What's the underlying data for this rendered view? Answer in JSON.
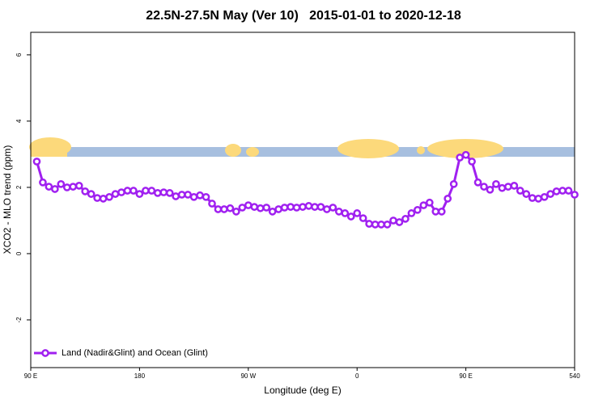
{
  "chart_data": {
    "type": "line",
    "title": "22.5N-27.5N May (Ver 10)   2015-01-01 to 2020-12-18",
    "x_label": "Longitude (deg E)",
    "y_label": "XCO2 - MLO trend (ppm)",
    "x": [
      95,
      100,
      105,
      110,
      115,
      120,
      125,
      130,
      135,
      140,
      145,
      150,
      155,
      160,
      165,
      170,
      175,
      180,
      185,
      190,
      195,
      200,
      205,
      210,
      215,
      220,
      225,
      230,
      235,
      240,
      245,
      250,
      255,
      260,
      265,
      270,
      275,
      280,
      285,
      290,
      295,
      300,
      305,
      310,
      315,
      320,
      325,
      330,
      335,
      340,
      345,
      350,
      355,
      360,
      365,
      370,
      375,
      380,
      385,
      390,
      395,
      400,
      405,
      410,
      415,
      420,
      425,
      430,
      435,
      440,
      445,
      450,
      455,
      460,
      465,
      470,
      475,
      480,
      485,
      490,
      495,
      500,
      505,
      510,
      515,
      520,
      525,
      530,
      535,
      540
    ],
    "series": [
      {
        "name": "Land (Nadir&Glint) and Ocean (Glint)",
        "color": "#a020f0",
        "values": [
          2.78,
          2.15,
          2.02,
          1.95,
          2.1,
          2.0,
          2.02,
          2.05,
          1.88,
          1.8,
          1.68,
          1.66,
          1.71,
          1.8,
          1.85,
          1.9,
          1.9,
          1.8,
          1.9,
          1.9,
          1.83,
          1.85,
          1.83,
          1.73,
          1.78,
          1.78,
          1.71,
          1.76,
          1.71,
          1.51,
          1.34,
          1.34,
          1.37,
          1.27,
          1.39,
          1.46,
          1.41,
          1.37,
          1.39,
          1.27,
          1.34,
          1.39,
          1.41,
          1.39,
          1.41,
          1.44,
          1.41,
          1.41,
          1.34,
          1.39,
          1.27,
          1.22,
          1.12,
          1.22,
          1.07,
          0.9,
          0.88,
          0.88,
          0.88,
          1.0,
          0.95,
          1.05,
          1.22,
          1.32,
          1.46,
          1.54,
          1.27,
          1.27,
          1.66,
          2.1,
          2.9,
          2.98,
          2.78,
          2.15,
          2.02,
          1.93,
          2.1,
          1.98,
          2.02,
          2.05,
          1.9,
          1.8,
          1.68,
          1.66,
          1.71,
          1.8,
          1.88,
          1.9,
          1.9,
          1.78
        ]
      }
    ],
    "xlim": [
      90,
      540
    ],
    "xticks": [
      {
        "value": 90,
        "label": "90 E"
      },
      180,
      {
        "value": 270,
        "label": "90 W"
      },
      {
        "value": 360,
        "label": "0"
      },
      {
        "value": 450,
        "label": "90 E"
      },
      540
    ],
    "ylim": [
      -3.44,
      6.68
    ],
    "yticks": [
      -2,
      0,
      2,
      4,
      6
    ],
    "legend": "bottom-left"
  }
}
